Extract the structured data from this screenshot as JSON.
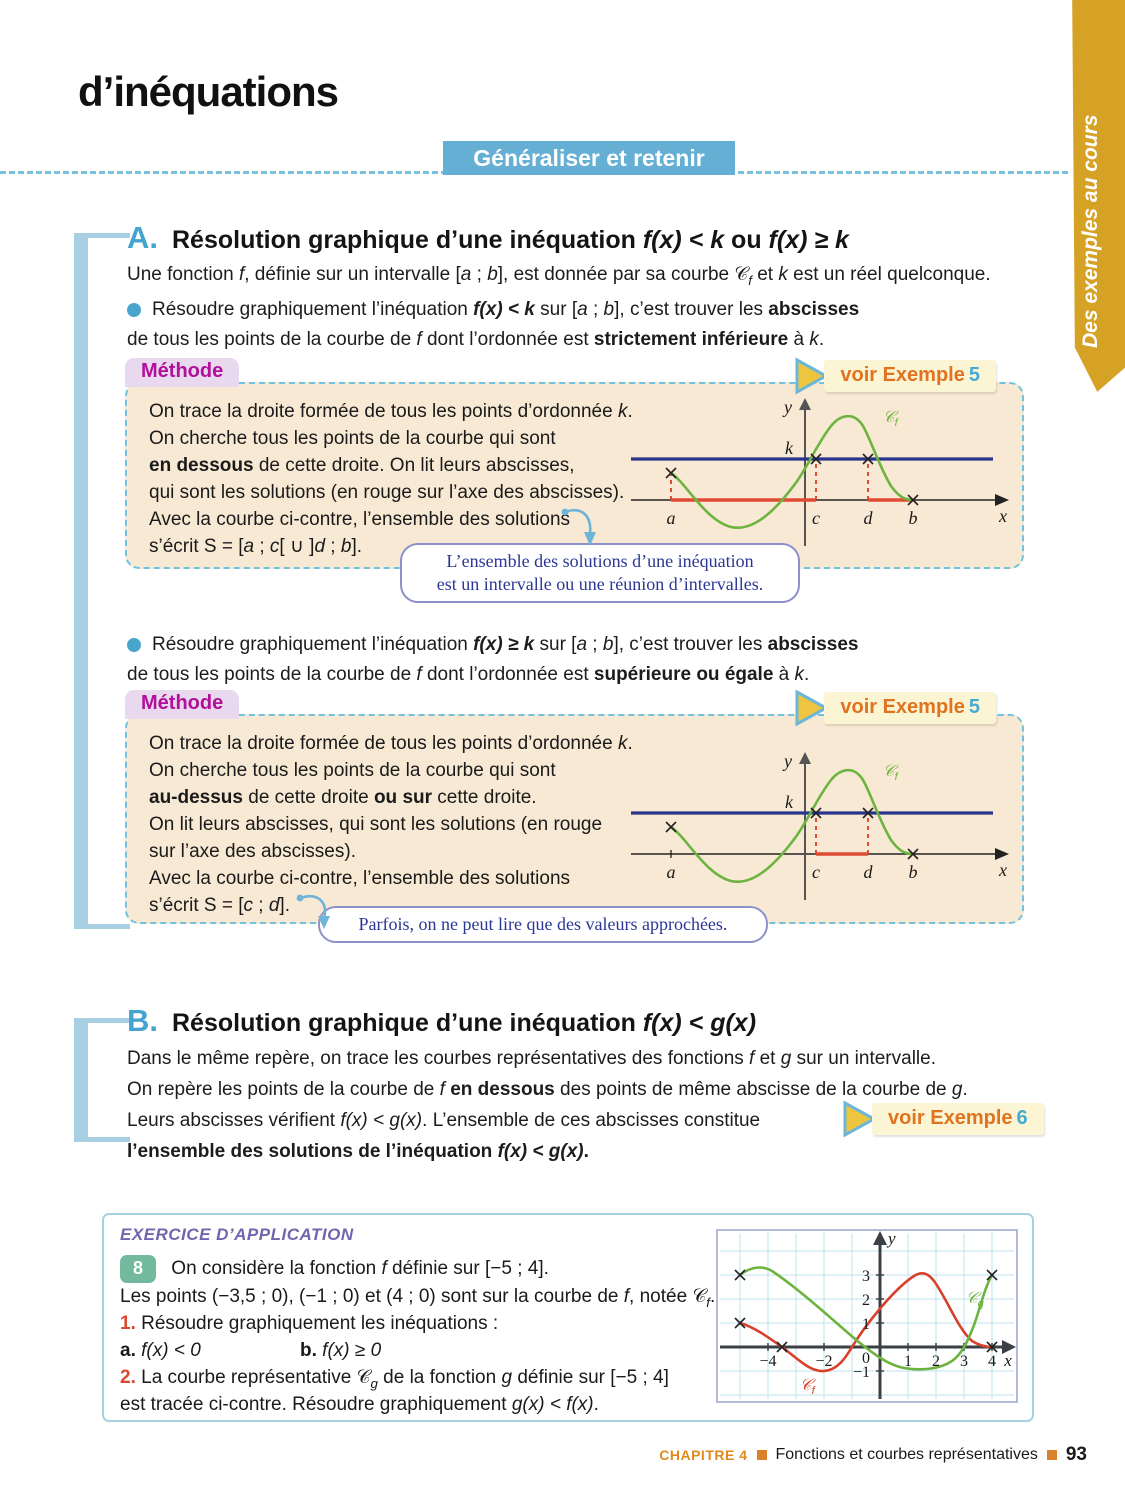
{
  "page": {
    "title": "d’inéquations",
    "banner_label": "Généraliser et retenir",
    "side_tab_label": "Des exemples au cours",
    "footer": {
      "chapter_label": "CHAPITRE 4",
      "book_section": "Fonctions et courbes représentatives",
      "page_number": "93"
    }
  },
  "colors": {
    "accent_blue": "#64afd3",
    "tab_gold": "#d5a226",
    "method_beige": "#f8e9d4",
    "method_label_purple": "#b2109a",
    "badge_orange": "#e0731f",
    "badge_number_blue": "#45aad4",
    "curve_green": "#6db33f",
    "curve_red": "#d9402c",
    "k_line_blue": "#28348e",
    "exercise_green": "#72b99e"
  },
  "section_a": {
    "letter": "A.",
    "heading_runs": [
      {
        "t": "Résolution graphique d’une inéquation ",
        "b": 1
      },
      {
        "t": "f(x) < k",
        "b": 1,
        "i": 1
      },
      {
        "t": " ou ",
        "b": 1
      },
      {
        "t": "f(x) ≥ k",
        "b": 1,
        "i": 1
      }
    ],
    "intro_runs": [
      {
        "t": "Une fonction "
      },
      {
        "t": "f",
        "i": 1
      },
      {
        "t": ", définie sur un intervalle ["
      },
      {
        "t": "a",
        "i": 1
      },
      {
        "t": " ; "
      },
      {
        "t": "b",
        "i": 1
      },
      {
        "t": "], est donnée par sa courbe "
      },
      {
        "t": "𝒞"
      },
      {
        "t": "f",
        "i": 1,
        "sub": 1
      },
      {
        "t": " et "
      },
      {
        "t": "k",
        "i": 1
      },
      {
        "t": " est un réel quelconque."
      }
    ],
    "bullet1_line1_runs": [
      {
        "t": "Résoudre graphiquement l’inéquation "
      },
      {
        "t": "f(x) < k",
        "b": 1,
        "i": 1
      },
      {
        "t": " sur ["
      },
      {
        "t": "a",
        "i": 1
      },
      {
        "t": " ; "
      },
      {
        "t": "b",
        "i": 1
      },
      {
        "t": "], c’est trouver les "
      },
      {
        "t": "abscisses",
        "b": 1
      }
    ],
    "bullet1_line2_runs": [
      {
        "t": "de tous les points de la courbe de "
      },
      {
        "t": "f",
        "i": 1
      },
      {
        "t": " dont l’ordonnée est "
      },
      {
        "t": "strictement inférieure",
        "b": 1
      },
      {
        "t": " à "
      },
      {
        "t": "k",
        "i": 1
      },
      {
        "t": "."
      }
    ],
    "bullet2_line1_runs": [
      {
        "t": "Résoudre graphiquement l’inéquation "
      },
      {
        "t": "f(x) ≥ k",
        "b": 1,
        "i": 1
      },
      {
        "t": " sur ["
      },
      {
        "t": "a",
        "i": 1
      },
      {
        "t": " ; "
      },
      {
        "t": "b",
        "i": 1
      },
      {
        "t": "], c’est trouver les "
      },
      {
        "t": "abscisses",
        "b": 1
      }
    ],
    "bullet2_line2_runs": [
      {
        "t": "de tous les points de la courbe de "
      },
      {
        "t": "f",
        "i": 1
      },
      {
        "t": " dont l’ordonnée est "
      },
      {
        "t": "supérieure ou égale",
        "b": 1
      },
      {
        "t": " à "
      },
      {
        "t": "k",
        "i": 1
      },
      {
        "t": "."
      }
    ]
  },
  "method1": {
    "label": "Méthode",
    "badge": {
      "text": "voir Exemple",
      "number": "5"
    },
    "lines": [
      [
        {
          "t": "On trace la droite formée de tous les points d’ordonnée "
        },
        {
          "t": "k",
          "i": 1
        },
        {
          "t": "."
        }
      ],
      [
        {
          "t": "On cherche tous les points de la courbe qui sont"
        }
      ],
      [
        {
          "t": "en dessous",
          "b": 1
        },
        {
          "t": " de cette droite. On lit leurs abscisses,"
        }
      ],
      [
        {
          "t": "qui sont les solutions (en rouge sur l’axe des abscisses)."
        }
      ],
      [
        {
          "t": "Avec la courbe ci-contre, l’ensemble des solutions"
        }
      ],
      [
        {
          "t": "s’écrit S = ["
        },
        {
          "t": "a",
          "i": 1
        },
        {
          "t": " ; "
        },
        {
          "t": "c",
          "i": 1
        },
        {
          "t": "[ ∪ ]"
        },
        {
          "t": "d",
          "i": 1
        },
        {
          "t": " ; "
        },
        {
          "t": "b",
          "i": 1
        },
        {
          "t": "]."
        }
      ]
    ],
    "graph": {
      "y": "y",
      "k": "k",
      "curve_main": "𝒞",
      "curve_sub": "f",
      "a": "a",
      "c": "c",
      "d": "d",
      "b": "b",
      "x": "x"
    },
    "note_line1": "L’ensemble des solutions d’une inéquation",
    "note_line2": "est un intervalle ou une réunion d’intervalles."
  },
  "method2": {
    "label": "Méthode",
    "badge": {
      "text": "voir Exemple",
      "number": "5"
    },
    "lines": [
      [
        {
          "t": "On trace la droite formée de tous les points d’ordonnée "
        },
        {
          "t": "k",
          "i": 1
        },
        {
          "t": "."
        }
      ],
      [
        {
          "t": "On cherche tous les points de la courbe qui sont"
        }
      ],
      [
        {
          "t": "au-dessus",
          "b": 1
        },
        {
          "t": " de cette droite "
        },
        {
          "t": "ou sur",
          "b": 1
        },
        {
          "t": " cette droite."
        }
      ],
      [
        {
          "t": "On lit leurs abscisses, qui sont les solutions (en rouge"
        }
      ],
      [
        {
          "t": "sur l’axe des abscisses)."
        }
      ],
      [
        {
          "t": "Avec la courbe ci-contre, l’ensemble des solutions"
        }
      ],
      [
        {
          "t": "s’écrit S = ["
        },
        {
          "t": "c",
          "i": 1
        },
        {
          "t": " ; "
        },
        {
          "t": "d",
          "i": 1
        },
        {
          "t": "]."
        }
      ]
    ],
    "graph": {
      "y": "y",
      "k": "k",
      "curve_main": "𝒞",
      "curve_sub": "f",
      "a": "a",
      "c": "c",
      "d": "d",
      "b": "b",
      "x": "x"
    },
    "note": "Parfois, on ne peut lire que des valeurs approchées."
  },
  "section_b": {
    "letter": "B.",
    "heading_runs": [
      {
        "t": "Résolution graphique d’une inéquation ",
        "b": 1
      },
      {
        "t": "f(x) < g(x)",
        "b": 1,
        "i": 1
      }
    ],
    "line1_runs": [
      {
        "t": "Dans le même repère, on trace les courbes représentatives des fonctions "
      },
      {
        "t": "f",
        "i": 1
      },
      {
        "t": " et "
      },
      {
        "t": "g",
        "i": 1
      },
      {
        "t": " sur un intervalle."
      }
    ],
    "line2_runs": [
      {
        "t": "On repère les points de la courbe de "
      },
      {
        "t": "f",
        "i": 1
      },
      {
        "t": " "
      },
      {
        "t": "en dessous",
        "b": 1
      },
      {
        "t": " des points de même abscisse de la courbe de "
      },
      {
        "t": "g",
        "i": 1
      },
      {
        "t": "."
      }
    ],
    "line3_runs": [
      {
        "t": "Leurs abscisses vérifient "
      },
      {
        "t": "f(x) < g(x)",
        "i": 1
      },
      {
        "t": ". L’ensemble de ces abscisses constitue"
      }
    ],
    "line4_runs": [
      {
        "t": "l’ensemble des solutions de l’inéquation ",
        "b": 1
      },
      {
        "t": "f(x) < g(x)",
        "b": 1,
        "i": 1
      },
      {
        "t": ".",
        "b": 1
      }
    ],
    "badge": {
      "text": "voir Exemple",
      "number": "6"
    }
  },
  "exercise": {
    "header": "EXERCICE D’APPLICATION",
    "number": "8",
    "line1_runs": [
      {
        "t": "On considère la fonction "
      },
      {
        "t": "f",
        "i": 1
      },
      {
        "t": " définie sur [−5 ; 4]."
      }
    ],
    "line2_runs": [
      {
        "t": "Les points (−3,5 ; 0), (−1 ; 0) et (4 ; 0) sont sur la courbe de "
      },
      {
        "t": "f",
        "i": 1
      },
      {
        "t": ", notée "
      },
      {
        "t": "𝒞"
      },
      {
        "t": "f",
        "i": 1,
        "sub": 1
      },
      {
        "t": "."
      }
    ],
    "line3_runs": [
      {
        "t": "1.",
        "b": 1,
        "c": "#d9482e"
      },
      {
        "t": " Résoudre graphiquement les inéquations :"
      }
    ],
    "line4a_runs": [
      {
        "t": "a.",
        "b": 1
      },
      {
        "t": " "
      },
      {
        "t": "f(x) < 0",
        "i": 1
      }
    ],
    "line4b_runs": [
      {
        "t": "b.",
        "b": 1
      },
      {
        "t": " "
      },
      {
        "t": "f(x) ≥ 0",
        "i": 1
      }
    ],
    "line5_runs": [
      {
        "t": "2.",
        "b": 1,
        "c": "#d9482e"
      },
      {
        "t": " La courbe représentative "
      },
      {
        "t": "𝒞"
      },
      {
        "t": "g",
        "i": 1,
        "sub": 1
      },
      {
        "t": " de la fonction "
      },
      {
        "t": "g",
        "i": 1
      },
      {
        "t": " définie sur [−5 ; 4]"
      }
    ],
    "line6_runs": [
      {
        "t": "est tracée ci-contre. Résoudre graphiquement "
      },
      {
        "t": "g(x) < f(x)",
        "i": 1
      },
      {
        "t": "."
      }
    ],
    "graph": {
      "y_label": "y",
      "x_label": "x",
      "x_ticks": [
        "−4",
        "−2",
        "0",
        "1",
        "2",
        "3",
        "4"
      ],
      "y_ticks": [
        "3",
        "2",
        "1",
        "−1"
      ],
      "curve_f_main": "𝒞",
      "curve_f_sub": "f",
      "curve_g_main": "𝒞",
      "curve_g_sub": "g"
    }
  },
  "chart_data": [
    {
      "type": "line",
      "title": "Méthode f(x) < k",
      "x_axis_labels": [
        "a",
        "c",
        "d",
        "b"
      ],
      "horizontal_line": "k",
      "solution_set": "S = [a ; c[ ∪ ]d ; b]",
      "red_axis_segments": [
        [
          "a",
          "c"
        ],
        [
          "d",
          "b"
        ]
      ],
      "curve": "𝒞f"
    },
    {
      "type": "line",
      "title": "Méthode f(x) ≥ k",
      "x_axis_labels": [
        "a",
        "c",
        "d",
        "b"
      ],
      "horizontal_line": "k",
      "solution_set": "S = [c ; d]",
      "red_axis_segments": [
        [
          "c",
          "d"
        ]
      ],
      "curve": "𝒞f"
    },
    {
      "type": "line",
      "title": "Exercice 8",
      "xlim": [
        -5,
        4
      ],
      "ylim": [
        -1.5,
        3.8
      ],
      "x_ticks": [
        -4,
        -2,
        0,
        1,
        2,
        3,
        4
      ],
      "y_ticks": [
        -1,
        1,
        2,
        3
      ],
      "series": [
        {
          "name": "𝒞f",
          "color": "#d9402c",
          "points": [
            [
              -5,
              1
            ],
            [
              -3.5,
              0
            ],
            [
              -2,
              -1
            ],
            [
              -1,
              0
            ],
            [
              1.5,
              3
            ],
            [
              3,
              0.3
            ],
            [
              4,
              0
            ]
          ]
        },
        {
          "name": "𝒞g",
          "color": "#6db33f",
          "points": [
            [
              -5,
              3
            ],
            [
              -4,
              3.4
            ],
            [
              -0.5,
              0
            ],
            [
              1,
              -0.9
            ],
            [
              2.3,
              -0.8
            ],
            [
              3,
              0.3
            ],
            [
              4,
              3
            ]
          ]
        }
      ]
    }
  ]
}
